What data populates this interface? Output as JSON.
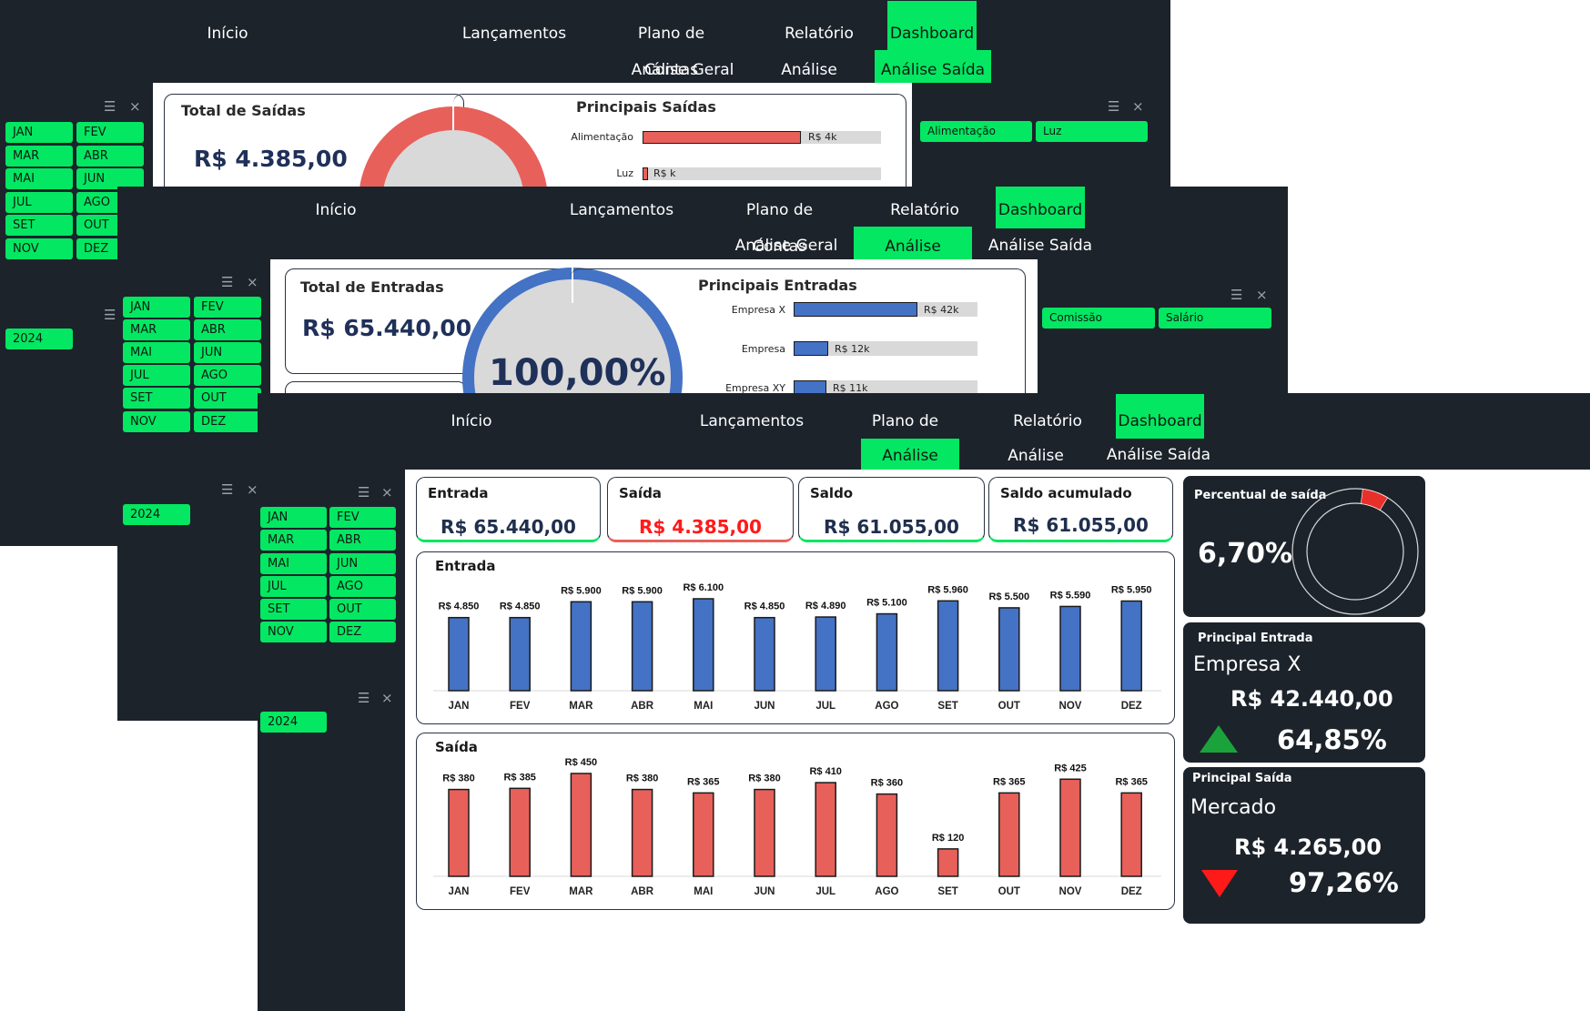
{
  "nav": {
    "inicio": "Início",
    "lancamentos": "Lançamentos",
    "plano": "Plano de Contas",
    "relatorio": "Relatório",
    "dashboard": "Dashboard"
  },
  "subnav": {
    "geral": "Análise Geral",
    "entrada": "Análise Entrada",
    "saida": "Análise Saída"
  },
  "months": [
    "JAN",
    "FEV",
    "MAR",
    "ABR",
    "MAI",
    "JUN",
    "JUL",
    "AGO",
    "SET",
    "OUT",
    "NOV",
    "DEZ"
  ],
  "year": "2024",
  "colors": {
    "accent": "#04e762",
    "panel": "#1c232b",
    "entrada": "#4472c4",
    "saida": "#e8605a",
    "navy": "#1f3059"
  },
  "saida_page": {
    "total_label": "Total de Saídas",
    "total_value": "R$ 4.385,00",
    "principais_title": "Principais  Saídas",
    "bars": [
      {
        "label": "Alimentação",
        "value": "R$ 4k"
      },
      {
        "label": "Luz",
        "value": "R$ k"
      }
    ],
    "filters": [
      "Alimentação",
      "Luz"
    ]
  },
  "entrada_page": {
    "total_label": "Total de Entradas",
    "total_value": "R$ 65.440,00",
    "donut_pct": "100,00%",
    "principais_title": "Principais  Entradas",
    "bars": [
      {
        "label": "Empresa X",
        "value": "R$ 42k"
      },
      {
        "label": "Empresa",
        "value": "R$ 12k"
      },
      {
        "label": "Empresa XY",
        "value": "R$ 11k"
      }
    ],
    "filters": [
      "Comissão",
      "Salário"
    ]
  },
  "geral": {
    "kpis": [
      {
        "title": "Entrada",
        "value": "R$ 65.440,00"
      },
      {
        "title": "Saída",
        "value": "R$ 4.385,00"
      },
      {
        "title": "Saldo",
        "value": "R$ 61.055,00"
      },
      {
        "title": "Saldo acumulado",
        "value": "R$ 61.055,00"
      }
    ],
    "percentual": {
      "title": "Percentual de saída",
      "value": "6,70%",
      "fraction": 0.067
    },
    "principal_entrada": {
      "title": "Principal Entrada",
      "name": "Empresa X",
      "value": "R$ 42.440,00",
      "pct": "64,85%"
    },
    "principal_saida": {
      "title": "Principal Saída",
      "name": "Mercado",
      "value": "R$ 4.265,00",
      "pct": "97,26%"
    },
    "entrada_chart_title": "Entrada",
    "saida_chart_title": "Saída"
  },
  "chart_data": [
    {
      "type": "bar",
      "title": "Entrada",
      "categories": [
        "JAN",
        "FEV",
        "MAR",
        "ABR",
        "MAI",
        "JUN",
        "JUL",
        "AGO",
        "SET",
        "OUT",
        "NOV",
        "DEZ"
      ],
      "values": [
        4850,
        4850,
        5900,
        5900,
        6100,
        4850,
        4890,
        5100,
        5960,
        5500,
        5590,
        5950
      ],
      "labels": [
        "R$ 4.850",
        "R$ 4.850",
        "R$ 5.900",
        "R$ 5.900",
        "R$ 6.100",
        "R$ 4.850",
        "R$ 4.890",
        "R$ 5.100",
        "R$ 5.960",
        "R$ 5.500",
        "R$ 5.590",
        "R$ 5.950"
      ],
      "ylim": [
        0,
        6100
      ]
    },
    {
      "type": "bar",
      "title": "Saída",
      "categories": [
        "JAN",
        "FEV",
        "MAR",
        "ABR",
        "MAI",
        "JUN",
        "JUL",
        "AGO",
        "SET",
        "OUT",
        "NOV",
        "DEZ"
      ],
      "values": [
        380,
        385,
        450,
        380,
        365,
        380,
        410,
        360,
        120,
        365,
        425,
        365
      ],
      "labels": [
        "R$ 380",
        "R$ 385",
        "R$ 450",
        "R$ 380",
        "R$ 365",
        "R$ 380",
        "R$ 410",
        "R$ 360",
        "R$ 120",
        "R$ 365",
        "R$ 425",
        "R$ 365"
      ],
      "ylim": [
        0,
        450
      ]
    }
  ]
}
